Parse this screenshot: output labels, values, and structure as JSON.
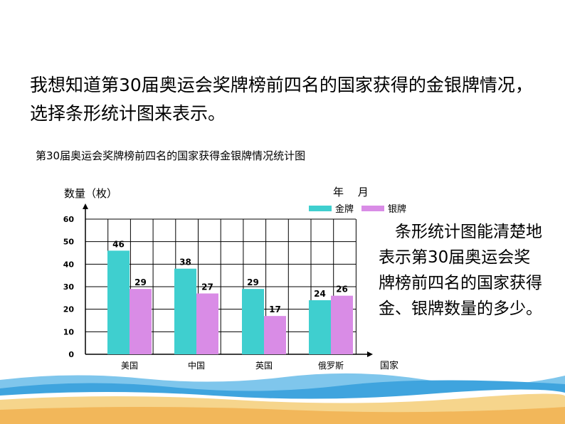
{
  "slide": {
    "intro_text": "我想知道第30届奥运会奖牌榜前四名的国家获得的金银牌情况，选择条形统计图来表示。",
    "note_text": "　条形统计图能清楚地表示第30届奥运会奖牌榜前四名的国家获得金、银牌数量的多少。"
  },
  "chart_data": {
    "type": "bar",
    "title": "第30届奥运会奖牌榜前四名的国家获得金银牌情况统计图",
    "ylabel": "数量（枚）",
    "xlabel": "国家",
    "date_label": "年　 月",
    "categories": [
      "美国",
      "中国",
      "英国",
      "俄罗斯"
    ],
    "series": [
      {
        "name": "金牌",
        "values": [
          46,
          38,
          29,
          24
        ],
        "color": "#3fcfcf"
      },
      {
        "name": "银牌",
        "values": [
          29,
          27,
          17,
          26
        ],
        "color": "#d98ce6"
      }
    ],
    "yticks": [
      0,
      10,
      20,
      30,
      40,
      50,
      60
    ],
    "ylim": [
      0,
      60
    ],
    "grid": true,
    "legend_position": "top-right"
  }
}
